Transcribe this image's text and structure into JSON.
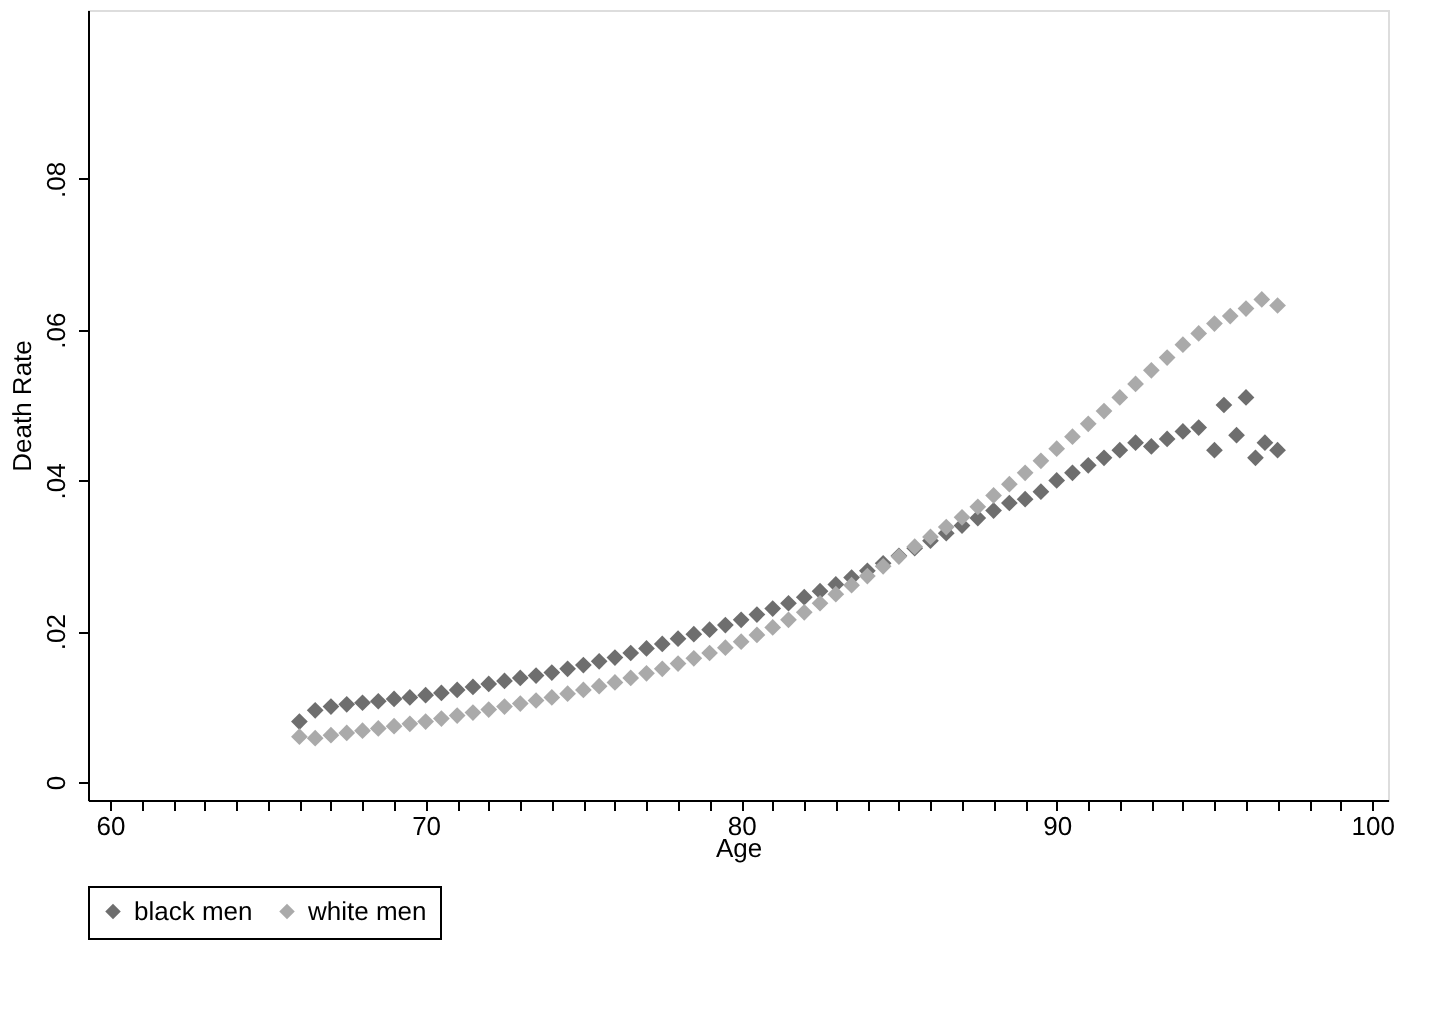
{
  "chart_data": {
    "type": "scatter",
    "xlabel": "Age",
    "ylabel": "Death Rate",
    "marker": "diamond",
    "legend": "bottom",
    "grid": false,
    "xlim": [
      59.3,
      100.5
    ],
    "ylim": [
      -0.0024,
      0.1024
    ],
    "xticks": [
      60,
      {
        "value": 61,
        "label": null
      },
      {
        "value": 62,
        "label": null
      },
      {
        "value": 63,
        "label": null
      },
      {
        "value": 64,
        "label": null
      },
      {
        "value": 65,
        "label": null
      },
      {
        "value": 66,
        "label": null
      },
      {
        "value": 67,
        "label": null
      },
      {
        "value": 68,
        "label": null
      },
      {
        "value": 69,
        "label": null
      },
      70,
      {
        "value": 71,
        "label": null
      },
      {
        "value": 72,
        "label": null
      },
      {
        "value": 73,
        "label": null
      },
      {
        "value": 74,
        "label": null
      },
      {
        "value": 75,
        "label": null
      },
      {
        "value": 76,
        "label": null
      },
      {
        "value": 77,
        "label": null
      },
      {
        "value": 78,
        "label": null
      },
      {
        "value": 79,
        "label": null
      },
      80,
      {
        "value": 81,
        "label": null
      },
      {
        "value": 82,
        "label": null
      },
      {
        "value": 83,
        "label": null
      },
      {
        "value": 84,
        "label": null
      },
      {
        "value": 85,
        "label": null
      },
      {
        "value": 86,
        "label": null
      },
      {
        "value": 87,
        "label": null
      },
      {
        "value": 88,
        "label": null
      },
      {
        "value": 89,
        "label": null
      },
      90,
      {
        "value": 91,
        "label": null
      },
      {
        "value": 92,
        "label": null
      },
      {
        "value": 93,
        "label": null
      },
      {
        "value": 94,
        "label": null
      },
      {
        "value": 95,
        "label": null
      },
      {
        "value": 96,
        "label": null
      },
      {
        "value": 97,
        "label": null
      },
      {
        "value": 98,
        "label": null
      },
      {
        "value": 99,
        "label": null
      },
      100
    ],
    "yticks": [
      {
        "value": 0,
        "label": "0"
      },
      {
        "value": 0.02,
        "label": ".02"
      },
      {
        "value": 0.04,
        "label": ".04"
      },
      {
        "value": 0.06,
        "label": ".06"
      },
      {
        "value": 0.08,
        "label": ".08"
      }
    ],
    "series": [
      {
        "name": "black men",
        "color": "#6e6e6e",
        "x": [
          66,
          66.5,
          67,
          67.5,
          68,
          68.5,
          69,
          69.5,
          70,
          70.5,
          71,
          71.5,
          72,
          72.5,
          73,
          73.5,
          74,
          74.5,
          75,
          75.5,
          76,
          76.5,
          77,
          77.5,
          78,
          78.5,
          79,
          79.5,
          80,
          80.5,
          81,
          81.5,
          82,
          82.5,
          83,
          83.5,
          84,
          84.5,
          85,
          85.5,
          86,
          86.5,
          87,
          87.5,
          88,
          88.5,
          89,
          89.5,
          90,
          90.5,
          91,
          91.5,
          92,
          92.5,
          93,
          93.5,
          94,
          94.5,
          95,
          95.3,
          95.7,
          96,
          96.3,
          96.6,
          97
        ],
        "values": [
          0.008,
          0.0095,
          0.01,
          0.0103,
          0.0105,
          0.0107,
          0.011,
          0.0112,
          0.0115,
          0.0118,
          0.0122,
          0.0126,
          0.013,
          0.0134,
          0.0138,
          0.0141,
          0.0145,
          0.015,
          0.0155,
          0.016,
          0.0165,
          0.0171,
          0.0177,
          0.0183,
          0.019,
          0.0196,
          0.0202,
          0.0208,
          0.0215,
          0.0222,
          0.023,
          0.0237,
          0.0245,
          0.0253,
          0.0262,
          0.0271,
          0.028,
          0.029,
          0.03,
          0.031,
          0.032,
          0.033,
          0.034,
          0.035,
          0.036,
          0.037,
          0.0375,
          0.0385,
          0.04,
          0.041,
          0.042,
          0.043,
          0.044,
          0.045,
          0.0445,
          0.0455,
          0.0465,
          0.047,
          0.044,
          0.05,
          0.046,
          0.051,
          0.043,
          0.045,
          0.044
        ]
      },
      {
        "name": "white men",
        "color": "#aaaaaa",
        "x": [
          66,
          66.5,
          67,
          67.5,
          68,
          68.5,
          69,
          69.5,
          70,
          70.5,
          71,
          71.5,
          72,
          72.5,
          73,
          73.5,
          74,
          74.5,
          75,
          75.5,
          76,
          76.5,
          77,
          77.5,
          78,
          78.5,
          79,
          79.5,
          80,
          80.5,
          81,
          81.5,
          82,
          82.5,
          83,
          83.5,
          84,
          84.5,
          85,
          85.5,
          86,
          86.5,
          87,
          87.5,
          88,
          88.5,
          89,
          89.5,
          90,
          90.5,
          91,
          91.5,
          92,
          92.5,
          93,
          93.5,
          94,
          94.5,
          95,
          95.5,
          96,
          96.5,
          97
        ],
        "values": [
          0.006,
          0.0058,
          0.0062,
          0.0065,
          0.0068,
          0.0071,
          0.0074,
          0.0077,
          0.008,
          0.0084,
          0.0088,
          0.0092,
          0.0096,
          0.01,
          0.0104,
          0.0108,
          0.0112,
          0.0117,
          0.0122,
          0.0127,
          0.0132,
          0.0138,
          0.0144,
          0.015,
          0.0157,
          0.0164,
          0.0171,
          0.0178,
          0.0186,
          0.0195,
          0.0205,
          0.0215,
          0.0225,
          0.0237,
          0.0249,
          0.0261,
          0.0273,
          0.0286,
          0.0299,
          0.0312,
          0.0325,
          0.0338,
          0.0351,
          0.0365,
          0.038,
          0.0395,
          0.041,
          0.0426,
          0.0442,
          0.0458,
          0.0475,
          0.0492,
          0.051,
          0.0528,
          0.0546,
          0.0563,
          0.058,
          0.0595,
          0.0608,
          0.0618,
          0.0628,
          0.064,
          0.0632
        ]
      }
    ]
  }
}
